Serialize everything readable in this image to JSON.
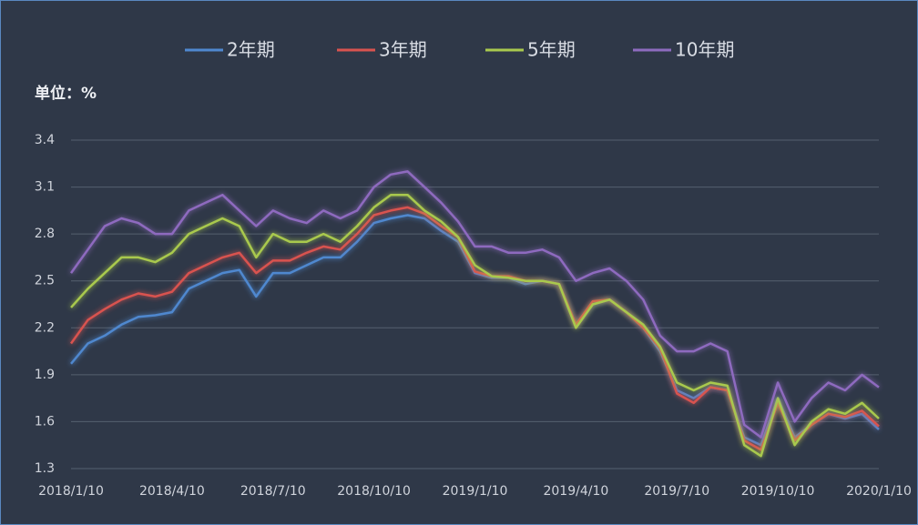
{
  "chart_data": {
    "type": "line",
    "y_label": "单位：%",
    "x": [
      "2018/1/10",
      "2018/1/25",
      "2018/2/10",
      "2018/2/25",
      "2018/3/10",
      "2018/3/25",
      "2018/4/10",
      "2018/4/25",
      "2018/5/10",
      "2018/5/25",
      "2018/6/10",
      "2018/6/25",
      "2018/7/10",
      "2018/7/25",
      "2018/8/10",
      "2018/8/25",
      "2018/9/10",
      "2018/9/25",
      "2018/10/10",
      "2018/10/25",
      "2018/11/10",
      "2018/11/25",
      "2018/12/10",
      "2018/12/25",
      "2019/1/10",
      "2019/1/25",
      "2019/2/10",
      "2019/2/25",
      "2019/3/10",
      "2019/3/25",
      "2019/4/10",
      "2019/4/25",
      "2019/5/10",
      "2019/5/25",
      "2019/6/10",
      "2019/6/25",
      "2019/7/10",
      "2019/7/25",
      "2019/8/10",
      "2019/8/25",
      "2019/9/10",
      "2019/9/25",
      "2019/10/10",
      "2019/10/25",
      "2019/11/10",
      "2019/11/25",
      "2019/12/10",
      "2019/12/25",
      "2020/1/10"
    ],
    "xticks": [
      "2018/1/10",
      "2018/4/10",
      "2018/7/10",
      "2018/10/10",
      "2019/1/10",
      "2019/4/10",
      "2019/7/10",
      "2019/10/10",
      "2020/1/10"
    ],
    "ylim": [
      1.3,
      3.4
    ],
    "yticks": [
      1.3,
      1.6,
      1.9,
      2.2,
      2.5,
      2.8,
      3.1,
      3.4
    ],
    "grid": true,
    "legend": "top",
    "series": [
      {
        "name": "2年期",
        "color": "#4f88cf",
        "values": [
          1.97,
          2.1,
          2.15,
          2.22,
          2.27,
          2.28,
          2.3,
          2.45,
          2.5,
          2.55,
          2.57,
          2.4,
          2.55,
          2.55,
          2.6,
          2.65,
          2.65,
          2.75,
          2.87,
          2.9,
          2.92,
          2.9,
          2.82,
          2.75,
          2.55,
          2.52,
          2.52,
          2.48,
          2.5,
          2.48,
          2.22,
          2.35,
          2.38,
          2.3,
          2.2,
          2.05,
          1.8,
          1.75,
          1.82,
          1.8,
          1.5,
          1.45,
          1.75,
          1.5,
          1.58,
          1.65,
          1.62,
          1.65,
          1.55
        ]
      },
      {
        "name": "3年期",
        "color": "#d9534f",
        "values": [
          2.1,
          2.25,
          2.32,
          2.38,
          2.42,
          2.4,
          2.43,
          2.55,
          2.6,
          2.65,
          2.68,
          2.55,
          2.63,
          2.63,
          2.68,
          2.72,
          2.7,
          2.8,
          2.92,
          2.95,
          2.97,
          2.93,
          2.85,
          2.78,
          2.56,
          2.53,
          2.53,
          2.5,
          2.5,
          2.48,
          2.22,
          2.37,
          2.38,
          2.3,
          2.2,
          2.07,
          1.78,
          1.72,
          1.82,
          1.8,
          1.48,
          1.42,
          1.72,
          1.48,
          1.58,
          1.65,
          1.63,
          1.67,
          1.57
        ]
      },
      {
        "name": "5年期",
        "color": "#a9c94e",
        "values": [
          2.33,
          2.45,
          2.55,
          2.65,
          2.65,
          2.62,
          2.68,
          2.8,
          2.85,
          2.9,
          2.85,
          2.65,
          2.8,
          2.75,
          2.75,
          2.8,
          2.75,
          2.85,
          2.97,
          3.05,
          3.05,
          2.95,
          2.88,
          2.78,
          2.6,
          2.53,
          2.52,
          2.5,
          2.5,
          2.48,
          2.2,
          2.35,
          2.38,
          2.3,
          2.22,
          2.08,
          1.85,
          1.8,
          1.85,
          1.83,
          1.45,
          1.38,
          1.75,
          1.45,
          1.6,
          1.68,
          1.65,
          1.72,
          1.62
        ]
      },
      {
        "name": "10年期",
        "color": "#8e6bbf",
        "values": [
          2.55,
          2.7,
          2.85,
          2.9,
          2.87,
          2.8,
          2.8,
          2.95,
          3.0,
          3.05,
          2.95,
          2.85,
          2.95,
          2.9,
          2.87,
          2.95,
          2.9,
          2.95,
          3.1,
          3.18,
          3.2,
          3.1,
          3.0,
          2.88,
          2.72,
          2.72,
          2.68,
          2.68,
          2.7,
          2.65,
          2.5,
          2.55,
          2.58,
          2.5,
          2.38,
          2.15,
          2.05,
          2.05,
          2.1,
          2.05,
          1.58,
          1.5,
          1.85,
          1.6,
          1.75,
          1.85,
          1.8,
          1.9,
          1.82
        ]
      }
    ]
  }
}
